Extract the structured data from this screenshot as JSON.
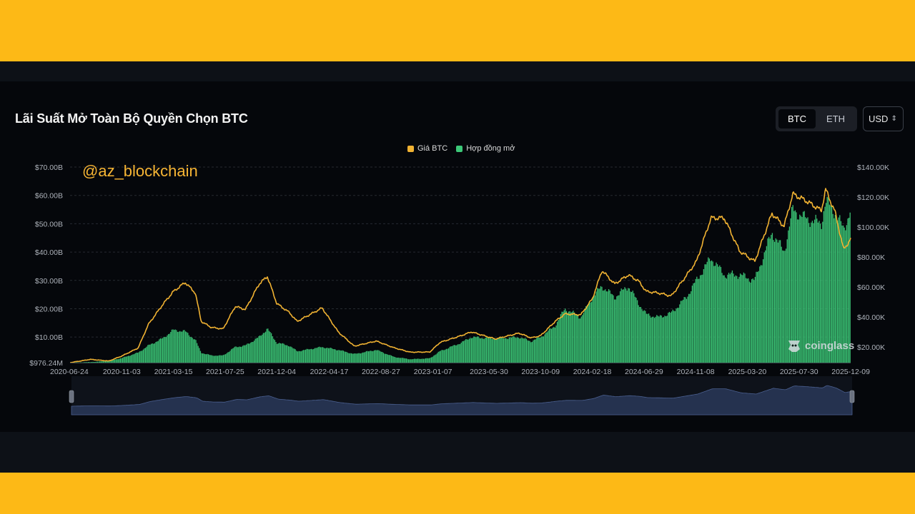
{
  "header": {
    "title": "Lãi Suất Mở Toàn Bộ Quyền Chọn BTC",
    "asset_tabs": [
      {
        "label": "BTC",
        "active": true
      },
      {
        "label": "ETH",
        "active": false
      }
    ],
    "currency": "USD"
  },
  "watermark": "@az_blockchain",
  "brand": "coinglass",
  "colors": {
    "price": "#F0B232",
    "open_interest": "#3CC878",
    "background": "#05070b",
    "page_accent": "#FDB916"
  },
  "chart_data": {
    "type": "area",
    "legend_position": "top-center",
    "grid": true,
    "x_tick_labels": [
      "2020-06-24",
      "2020-11-03",
      "2021-03-15",
      "2021-07-25",
      "2021-12-04",
      "2022-04-17",
      "2022-08-27",
      "2023-01-07",
      "2023-05-30",
      "2023-10-09",
      "2024-02-18",
      "2024-06-29",
      "2024-11-08",
      "2025-03-20",
      "2025-07-30",
      "2025-12-09"
    ],
    "y_left": {
      "ticks": [
        "$976.24M",
        "$10.00B",
        "$20.00B",
        "$30.00B",
        "$40.00B",
        "$50.00B",
        "$60.00B",
        "$70.00B"
      ],
      "min": 0.97624,
      "max": 70,
      "unit": "B USD"
    },
    "y_right": {
      "ticks": [
        "$20.00K",
        "$40.00K",
        "$60.00K",
        "$80.00K",
        "$100.00K",
        "$120.00K",
        "$140.00K"
      ],
      "min": 9500,
      "max": 140000,
      "unit": "USD"
    },
    "x": [
      "2020-06-24",
      "2020-08-15",
      "2020-10-01",
      "2020-11-03",
      "2020-12-15",
      "2021-01-10",
      "2021-02-15",
      "2021-03-15",
      "2021-04-14",
      "2021-05-10",
      "2021-05-25",
      "2021-06-20",
      "2021-07-20",
      "2021-08-20",
      "2021-09-15",
      "2021-10-20",
      "2021-11-10",
      "2021-12-04",
      "2022-01-05",
      "2022-01-25",
      "2022-03-30",
      "2022-05-10",
      "2022-06-20",
      "2022-08-15",
      "2022-09-30",
      "2022-11-10",
      "2022-12-30",
      "2023-01-25",
      "2023-03-20",
      "2023-04-15",
      "2023-06-15",
      "2023-08-15",
      "2023-09-15",
      "2023-10-09",
      "2023-11-15",
      "2023-12-10",
      "2024-01-20",
      "2024-02-18",
      "2024-03-14",
      "2024-04-15",
      "2024-05-20",
      "2024-06-15",
      "2024-07-05",
      "2024-08-05",
      "2024-09-07",
      "2024-10-15",
      "2024-11-10",
      "2024-12-17",
      "2025-01-20",
      "2025-02-28",
      "2025-04-08",
      "2025-05-22",
      "2025-06-22",
      "2025-07-14",
      "2025-08-14",
      "2025-09-25",
      "2025-10-06",
      "2025-10-30",
      "2025-11-21",
      "2025-12-09"
    ],
    "series": [
      {
        "name": "Giá BTC",
        "axis": "right",
        "values": [
          9500,
          11700,
          10600,
          13900,
          19300,
          35000,
          48000,
          57000,
          63000,
          56000,
          37000,
          33000,
          32000,
          47000,
          45000,
          62000,
          67000,
          49000,
          43000,
          37000,
          46000,
          30000,
          20500,
          23900,
          19400,
          16500,
          16600,
          23000,
          27500,
          30000,
          25300,
          29200,
          26000,
          27500,
          37000,
          42000,
          41500,
          52000,
          71000,
          62000,
          68000,
          64000,
          57000,
          56000,
          54000,
          67500,
          77000,
          106000,
          106000,
          84000,
          77000,
          109000,
          100500,
          122000,
          118000,
          111000,
          125000,
          110000,
          85000,
          92000
        ]
      },
      {
        "name": "Hợp đồng mở",
        "axis": "left",
        "unit": "B USD",
        "values": [
          0.98,
          1.2,
          1.6,
          2.6,
          4.5,
          7,
          9.5,
          12.5,
          12,
          9,
          4.5,
          3.5,
          3.5,
          6.5,
          7,
          10,
          13,
          8,
          7,
          5,
          6.5,
          5.5,
          4,
          5.5,
          3,
          2.2,
          2.5,
          5,
          8,
          10,
          9.5,
          10,
          8.5,
          10,
          14,
          20,
          17,
          24,
          28,
          24,
          28,
          22,
          18,
          17,
          18.5,
          24,
          30,
          38,
          32,
          32,
          30,
          47,
          40,
          55,
          52,
          50,
          58,
          54,
          48,
          55
        ]
      }
    ]
  }
}
